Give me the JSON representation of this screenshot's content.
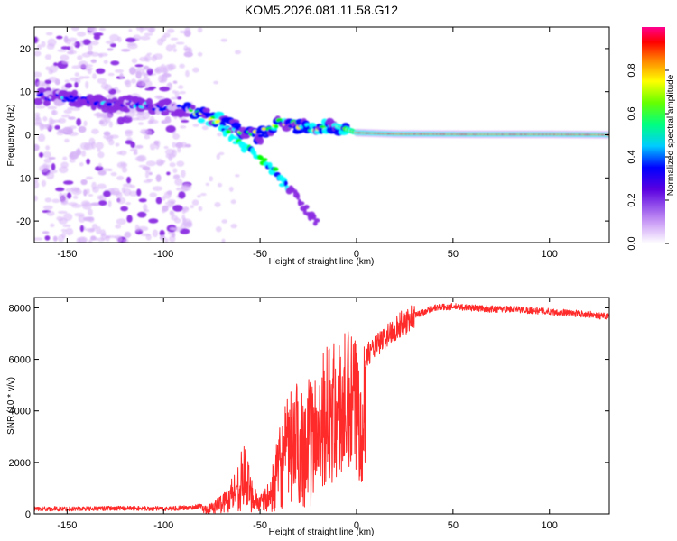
{
  "figure": {
    "title": "KOM5.2026.081.11.58.G12"
  },
  "chart_data": [
    {
      "type": "heatmap",
      "title": "KOM5.2026.081.11.58.G12",
      "xlabel": "Height of straight line (km)",
      "ylabel": "Frequency (Hz)",
      "xlim": [
        -167,
        131
      ],
      "ylim": [
        -25,
        25
      ],
      "xticks": [
        -150,
        -100,
        -50,
        0,
        50,
        100
      ],
      "yticks": [
        -20,
        -10,
        0,
        10,
        20
      ],
      "colorbar": {
        "label": "Normalized spectral amplitude",
        "range": [
          0,
          1
        ],
        "ticks": [
          0.0,
          0.2,
          0.4,
          0.6,
          0.8
        ],
        "colormap": [
          "#ffffff",
          "#d8b6f7",
          "#8a2be2",
          "#0000ff",
          "#00ffff",
          "#00ff00",
          "#ffff00",
          "#ff8000",
          "#ff0000",
          "#ff00aa"
        ]
      },
      "ridges": [
        {
          "name": "main-ridge",
          "points": [
            [
              -165,
              9
            ],
            [
              -150,
              8.5
            ],
            [
              -135,
              7.5
            ],
            [
              -120,
              7
            ],
            [
              -100,
              6.5
            ],
            [
              -85,
              5.5
            ],
            [
              -70,
              3
            ],
            [
              -60,
              1
            ],
            [
              -50,
              0
            ],
            [
              -40,
              3
            ],
            [
              -25,
              1.5
            ],
            [
              -10,
              2
            ],
            [
              0,
              0.5
            ],
            [
              20,
              0.2
            ],
            [
              60,
              0.1
            ],
            [
              100,
              0.1
            ],
            [
              130,
              0
            ]
          ]
        },
        {
          "name": "lower-branch",
          "points": [
            [
              -70,
              1
            ],
            [
              -60,
              -2
            ],
            [
              -50,
              -5
            ],
            [
              -40,
              -10
            ],
            [
              -30,
              -15
            ],
            [
              -20,
              -21
            ]
          ]
        }
      ]
    },
    {
      "type": "line",
      "xlabel": "Height of straight line (km)",
      "ylabel": "SNR (10 * v/v)",
      "xlim": [
        -167,
        131
      ],
      "ylim": [
        0,
        8400
      ],
      "xticks": [
        -150,
        -100,
        -50,
        0,
        50,
        100
      ],
      "yticks": [
        0,
        2000,
        4000,
        6000,
        8000
      ],
      "series": [
        {
          "name": "SNR",
          "color": "#ff2a2a",
          "envelope": {
            "x": [
              -167,
              -150,
              -120,
              -100,
              -85,
              -75,
              -68,
              -62,
              -58,
              -55,
              -50,
              -45,
              -40,
              -35,
              -30,
              -25,
              -20,
              -15,
              -10,
              -5,
              0,
              10,
              20,
              30,
              40,
              50,
              60,
              70,
              80,
              90,
              100,
              110,
              120,
              131
            ],
            "y": [
              200,
              200,
              220,
              200,
              250,
              400,
              900,
              1800,
              2700,
              1500,
              700,
              1200,
              3200,
              4500,
              5000,
              5000,
              5300,
              5500,
              5600,
              6000,
              5800,
              6500,
              7200,
              7700,
              8000,
              8050,
              8000,
              7950,
              7950,
              7900,
              7850,
              7800,
              7750,
              7650
            ]
          },
          "spike_max": 8400
        }
      ]
    }
  ]
}
